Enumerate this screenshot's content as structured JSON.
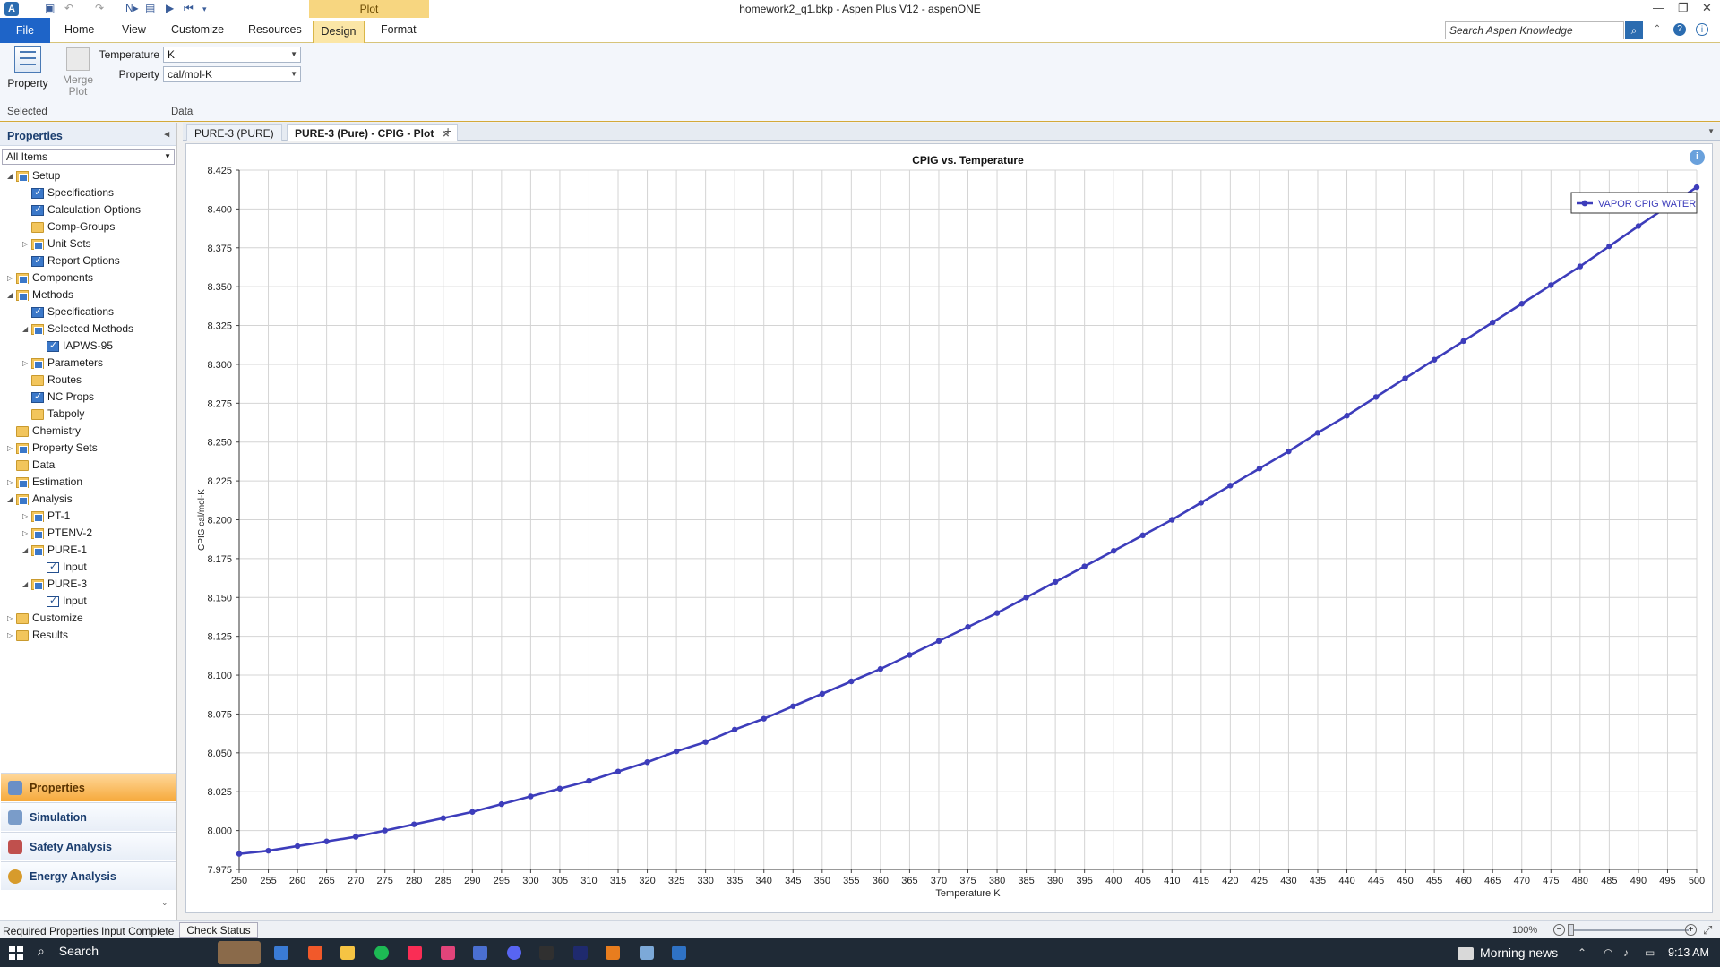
{
  "window": {
    "title": "homework2_q1.bkp - Aspen Plus V12 - aspenONE",
    "context_tab": "Plot",
    "app_icon": "aspen-logo-icon"
  },
  "ribbon": {
    "tabs": [
      "File",
      "Home",
      "View",
      "Customize",
      "Resources",
      "Design",
      "Format"
    ],
    "active_tab": "Design",
    "search_placeholder": "Search Aspen Knowledge",
    "property_button": "Property",
    "merge_plot_button": "Merge Plot",
    "temperature_label": "Temperature",
    "temperature_value": "K",
    "property_label": "Property",
    "property_value": "cal/mol-K",
    "group_selected": "Selected",
    "group_data": "Data"
  },
  "left_panel": {
    "title": "Properties",
    "filter": "All Items",
    "tree": [
      {
        "label": "Setup",
        "depth": 0,
        "icon": "folder-chk",
        "exp": "open"
      },
      {
        "label": "Specifications",
        "depth": 1,
        "icon": "chk",
        "exp": ""
      },
      {
        "label": "Calculation Options",
        "depth": 1,
        "icon": "chk",
        "exp": ""
      },
      {
        "label": "Comp-Groups",
        "depth": 1,
        "icon": "folder",
        "exp": ""
      },
      {
        "label": "Unit Sets",
        "depth": 1,
        "icon": "folder-chk",
        "exp": "closed"
      },
      {
        "label": "Report Options",
        "depth": 1,
        "icon": "chk",
        "exp": ""
      },
      {
        "label": "Components",
        "depth": 0,
        "icon": "folder-chk",
        "exp": "closed"
      },
      {
        "label": "Methods",
        "depth": 0,
        "icon": "folder-chk",
        "exp": "open"
      },
      {
        "label": "Specifications",
        "depth": 1,
        "icon": "chk",
        "exp": ""
      },
      {
        "label": "Selected Methods",
        "depth": 1,
        "icon": "folder-chk",
        "exp": "open"
      },
      {
        "label": "IAPWS-95",
        "depth": 2,
        "icon": "chk",
        "exp": ""
      },
      {
        "label": "Parameters",
        "depth": 1,
        "icon": "folder-chk",
        "exp": "closed"
      },
      {
        "label": "Routes",
        "depth": 1,
        "icon": "folder",
        "exp": ""
      },
      {
        "label": "NC Props",
        "depth": 1,
        "icon": "chk",
        "exp": ""
      },
      {
        "label": "Tabpoly",
        "depth": 1,
        "icon": "folder",
        "exp": ""
      },
      {
        "label": "Chemistry",
        "depth": 0,
        "icon": "folder",
        "exp": ""
      },
      {
        "label": "Property Sets",
        "depth": 0,
        "icon": "folder-chk",
        "exp": "closed"
      },
      {
        "label": "Data",
        "depth": 0,
        "icon": "folder",
        "exp": ""
      },
      {
        "label": "Estimation",
        "depth": 0,
        "icon": "folder-chk",
        "exp": "closed"
      },
      {
        "label": "Analysis",
        "depth": 0,
        "icon": "folder-chk",
        "exp": "open"
      },
      {
        "label": "PT-1",
        "depth": 1,
        "icon": "folder-chk",
        "exp": "closed"
      },
      {
        "label": "PTENV-2",
        "depth": 1,
        "icon": "folder-chk",
        "exp": "closed"
      },
      {
        "label": "PURE-1",
        "depth": 1,
        "icon": "folder-chk",
        "exp": "open"
      },
      {
        "label": "Input",
        "depth": 2,
        "icon": "input",
        "exp": ""
      },
      {
        "label": "PURE-3",
        "depth": 1,
        "icon": "folder-chk",
        "exp": "open"
      },
      {
        "label": "Input",
        "depth": 2,
        "icon": "input",
        "exp": ""
      },
      {
        "label": "Customize",
        "depth": 0,
        "icon": "folder",
        "exp": "closed"
      },
      {
        "label": "Results",
        "depth": 0,
        "icon": "folder",
        "exp": "closed"
      }
    ],
    "nav": {
      "properties": "Properties",
      "simulation": "Simulation",
      "safety": "Safety Analysis",
      "energy": "Energy Analysis"
    }
  },
  "doc_tabs": [
    "PURE-3 (PURE)",
    "PURE-3 (Pure) - CPIG - Plot"
  ],
  "chart_data": {
    "type": "line",
    "title": "CPIG vs. Temperature",
    "xlabel": "Temperature K",
    "ylabel": "CPIG cal/mol-K",
    "xlim": [
      250,
      500
    ],
    "ylim": [
      7.975,
      8.425
    ],
    "xticks": [
      250,
      255,
      260,
      265,
      270,
      275,
      280,
      285,
      290,
      295,
      300,
      305,
      310,
      315,
      320,
      325,
      330,
      335,
      340,
      345,
      350,
      355,
      360,
      365,
      370,
      375,
      380,
      385,
      390,
      395,
      400,
      405,
      410,
      415,
      420,
      425,
      430,
      435,
      440,
      445,
      450,
      455,
      460,
      465,
      470,
      475,
      480,
      485,
      490,
      495,
      500
    ],
    "yticks": [
      "7.975",
      "8.000",
      "8.025",
      "8.050",
      "8.075",
      "8.100",
      "8.125",
      "8.150",
      "8.175",
      "8.200",
      "8.225",
      "8.250",
      "8.275",
      "8.300",
      "8.325",
      "8.350",
      "8.375",
      "8.400",
      "8.425"
    ],
    "grid": true,
    "legend_position": "top-right",
    "series": [
      {
        "name": "VAPOR CPIG WATER",
        "color": "#3d3dbb",
        "x": [
          250,
          255,
          260,
          265,
          270,
          275,
          280,
          285,
          290,
          295,
          300,
          305,
          310,
          315,
          320,
          325,
          330,
          335,
          340,
          345,
          350,
          355,
          360,
          365,
          370,
          375,
          380,
          385,
          390,
          395,
          400,
          405,
          410,
          415,
          420,
          425,
          430,
          435,
          440,
          445,
          450,
          455,
          460,
          465,
          470,
          475,
          480,
          485,
          490,
          500
        ],
        "y": [
          7.985,
          7.987,
          7.99,
          7.993,
          7.996,
          8.0,
          8.004,
          8.008,
          8.012,
          8.017,
          8.022,
          8.027,
          8.032,
          8.038,
          8.044,
          8.051,
          8.057,
          8.065,
          8.072,
          8.08,
          8.088,
          8.096,
          8.104,
          8.113,
          8.122,
          8.131,
          8.14,
          8.15,
          8.16,
          8.17,
          8.18,
          8.19,
          8.2,
          8.211,
          8.222,
          8.233,
          8.244,
          8.256,
          8.267,
          8.279,
          8.291,
          8.303,
          8.315,
          8.327,
          8.339,
          8.351,
          8.363,
          8.376,
          8.389,
          8.414
        ]
      }
    ]
  },
  "status": {
    "text": "Required Properties Input Complete",
    "check_button": "Check Status",
    "zoom": "100%"
  },
  "taskbar": {
    "search": "Search",
    "news": "Morning news",
    "time": "9:13 AM"
  }
}
